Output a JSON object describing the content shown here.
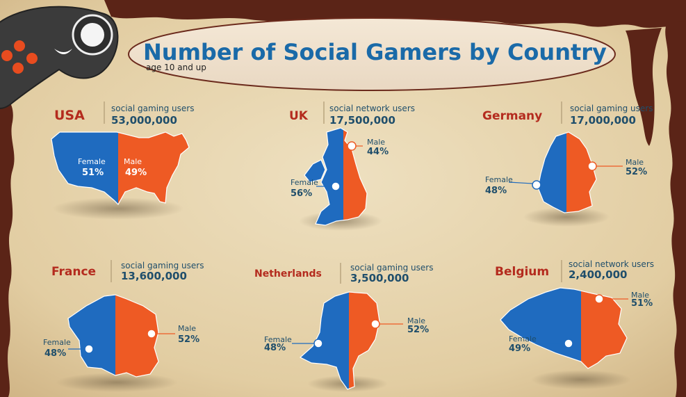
{
  "title": "Number of Social Gamers by Country",
  "subtitle": "age 10 and up",
  "colors": {
    "female": "#1f6bbf",
    "male": "#ee5a24",
    "country": "#b42b1e",
    "text": "#1f4e6b",
    "title": "#1a6aa8",
    "border": "#5b2417"
  },
  "icons": {
    "controller": "game-controller-icon"
  },
  "chart_data": {
    "type": "pie",
    "countries": [
      {
        "name": "USA",
        "metric": "social gaming users",
        "users": "53,000,000",
        "female_label": "Female",
        "female": "51%",
        "male_label": "Male",
        "male": "49%"
      },
      {
        "name": "UK",
        "metric": "social network users",
        "users": "17,500,000",
        "female_label": "Female",
        "female": "56%",
        "male_label": "Male",
        "male": "44%"
      },
      {
        "name": "Germany",
        "metric": "social gaming users",
        "users": "17,000,000",
        "female_label": "Female",
        "female": "48%",
        "male_label": "Male",
        "male": "52%"
      },
      {
        "name": "France",
        "metric": "social gaming users",
        "users": "13,600,000",
        "female_label": "Female",
        "female": "48%",
        "male_label": "Male",
        "male": "52%"
      },
      {
        "name": "Netherlands",
        "metric": "social gaming users",
        "users": "3,500,000",
        "female_label": "Female",
        "female": "48%",
        "male_label": "Male",
        "male": "52%"
      },
      {
        "name": "Belgium",
        "metric": "social network users",
        "users": "2,400,000",
        "female_label": "Female",
        "female": "49%",
        "male_label": "Male",
        "male": "51%"
      }
    ]
  }
}
